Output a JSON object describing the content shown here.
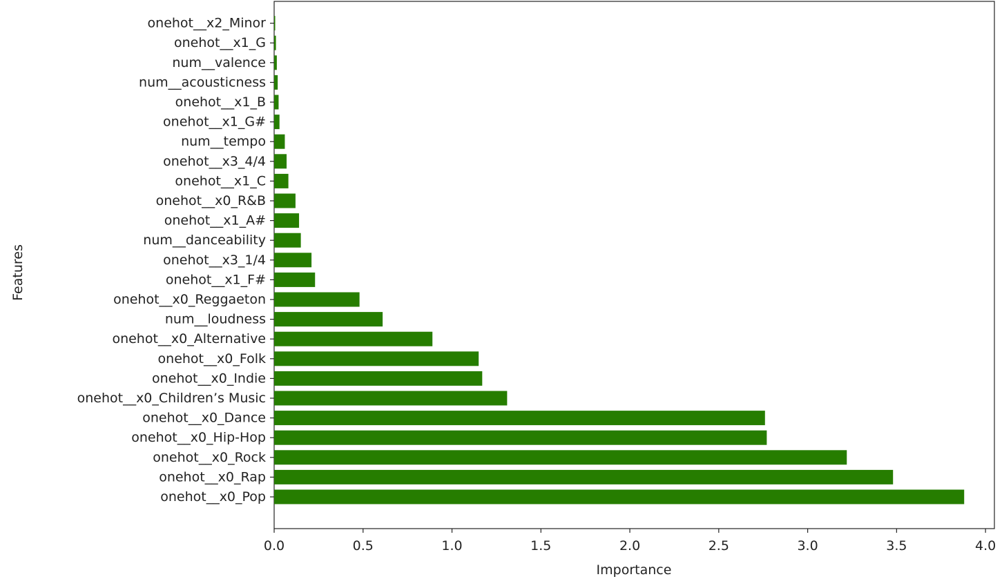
{
  "chart_data": {
    "type": "bar",
    "orientation": "horizontal",
    "xlabel": "Importance",
    "ylabel": "Features",
    "xlim": [
      0.0,
      4.05
    ],
    "xticks": [
      "0.0",
      "0.5",
      "1.0",
      "1.5",
      "2.0",
      "2.5",
      "3.0",
      "3.5",
      "4.0"
    ],
    "grid": false,
    "bar_color": "#267d00",
    "categories": [
      "onehot__x0_Pop",
      "onehot__x0_Rap",
      "onehot__x0_Rock",
      "onehot__x0_Hip-Hop",
      "onehot__x0_Dance",
      "onehot__x0_Children’s Music",
      "onehot__x0_Indie",
      "onehot__x0_Folk",
      "onehot__x0_Alternative",
      "num__loudness",
      "onehot__x0_Reggaeton",
      "onehot__x1_F#",
      "onehot__x3_1/4",
      "num__danceability",
      "onehot__x1_A#",
      "onehot__x0_R&B",
      "onehot__x1_C",
      "onehot__x3_4/4",
      "num__tempo",
      "onehot__x1_G#",
      "onehot__x1_B",
      "num__acousticness",
      "num__valence",
      "onehot__x1_G",
      "onehot__x2_Minor"
    ],
    "values": [
      3.88,
      3.48,
      3.22,
      2.77,
      2.76,
      1.31,
      1.17,
      1.15,
      0.89,
      0.61,
      0.48,
      0.23,
      0.21,
      0.15,
      0.14,
      0.12,
      0.08,
      0.07,
      0.06,
      0.03,
      0.025,
      0.02,
      0.015,
      0.01,
      0.005
    ]
  }
}
